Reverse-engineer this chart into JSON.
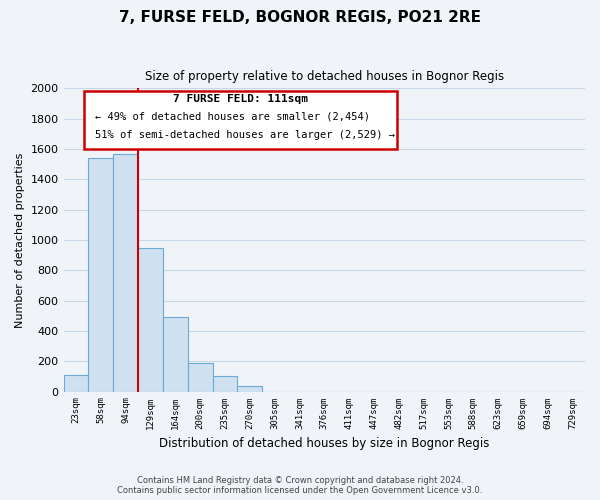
{
  "title": "7, FURSE FELD, BOGNOR REGIS, PO21 2RE",
  "subtitle": "Size of property relative to detached houses in Bognor Regis",
  "xlabel": "Distribution of detached houses by size in Bognor Regis",
  "ylabel": "Number of detached properties",
  "bar_values": [
    110,
    1540,
    1570,
    950,
    490,
    190,
    100,
    35,
    0,
    0,
    0,
    0,
    0,
    0,
    0,
    0,
    0,
    0,
    0,
    0,
    0
  ],
  "bar_labels": [
    "23sqm",
    "58sqm",
    "94sqm",
    "129sqm",
    "164sqm",
    "200sqm",
    "235sqm",
    "270sqm",
    "305sqm",
    "341sqm",
    "376sqm",
    "411sqm",
    "447sqm",
    "482sqm",
    "517sqm",
    "553sqm",
    "588sqm",
    "623sqm",
    "659sqm",
    "694sqm",
    "729sqm"
  ],
  "bar_color": "#cfe0f0",
  "bar_edge_color": "#6aaad4",
  "vline_color": "#cc0000",
  "ylim": [
    0,
    2000
  ],
  "yticks": [
    0,
    200,
    400,
    600,
    800,
    1000,
    1200,
    1400,
    1600,
    1800,
    2000
  ],
  "annotation_title": "7 FURSE FELD: 111sqm",
  "annotation_line1": "← 49% of detached houses are smaller (2,454)",
  "annotation_line2": "51% of semi-detached houses are larger (2,529) →",
  "annotation_box_color": "#ffffff",
  "annotation_box_edge": "#cc0000",
  "footer_line1": "Contains HM Land Registry data © Crown copyright and database right 2024.",
  "footer_line2": "Contains public sector information licensed under the Open Government Licence v3.0.",
  "background_color": "#f0f4f8",
  "grid_color": "#c8d8e8"
}
